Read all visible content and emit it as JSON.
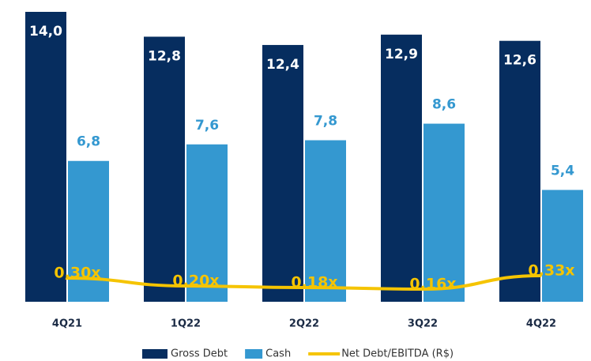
{
  "chart_data": {
    "type": "bar",
    "categories": [
      "4Q21",
      "1Q22",
      "2Q22",
      "3Q22",
      "4Q22"
    ],
    "series": [
      {
        "name": "Gross Debt",
        "color": "#062d5f",
        "values": [
          14.0,
          12.8,
          12.4,
          12.9,
          12.6
        ],
        "value_labels": [
          "14,0",
          "12,8",
          "12,4",
          "12,9",
          "12,6"
        ]
      },
      {
        "name": "Cash",
        "color": "#3498d0",
        "values": [
          6.8,
          7.6,
          7.8,
          8.6,
          5.4
        ],
        "value_labels": [
          "6,8",
          "7,6",
          "7,8",
          "8,6",
          "5,4"
        ]
      },
      {
        "name": "Net Debt/EBITDA (R$)",
        "type": "line",
        "axis": "y2",
        "color": "#f5c400",
        "values": [
          0.3,
          0.2,
          0.18,
          0.16,
          0.33
        ],
        "value_labels": [
          "0,30x",
          "0,20x",
          "0,18x",
          "0,16x",
          "0,33x"
        ]
      }
    ],
    "ylim": [
      0,
      14
    ],
    "y2lim": [
      0,
      3.67
    ],
    "legend": "bottom"
  }
}
